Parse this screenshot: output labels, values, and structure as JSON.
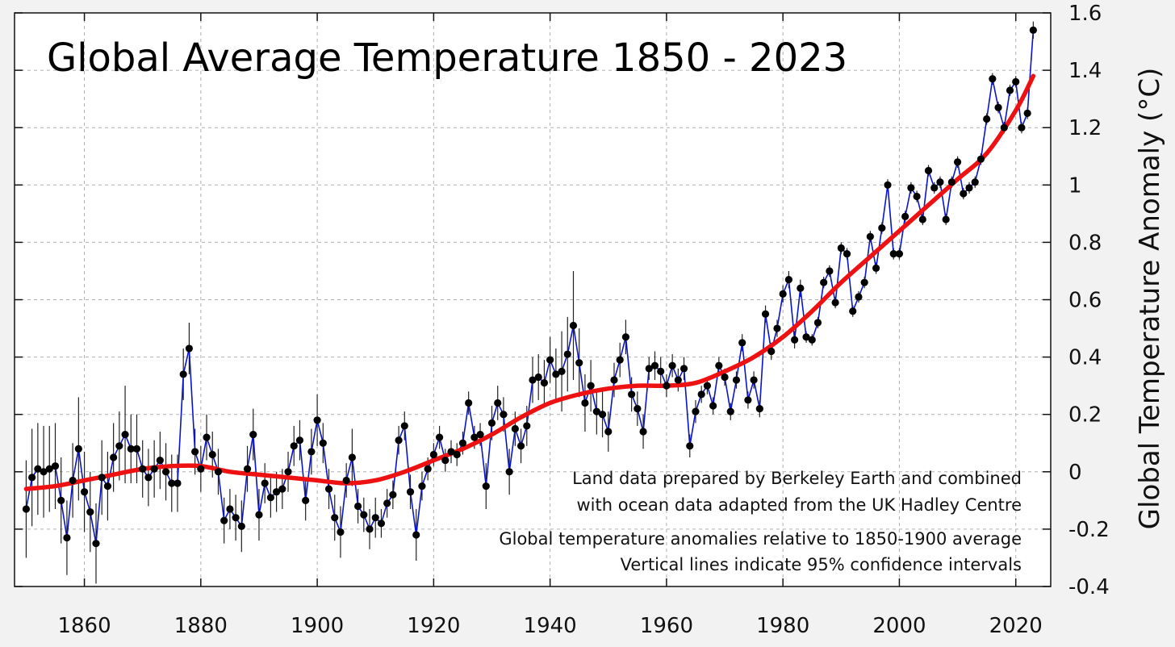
{
  "chart_data": {
    "type": "line",
    "title": "Global Average Temperature 1850 - 2023",
    "xlabel": "",
    "ylabel": "Global Temperature Anomaly (°C)",
    "xlim": [
      1848,
      2026
    ],
    "ylim": [
      -0.4,
      1.6
    ],
    "x_ticks": [
      1860,
      1880,
      1900,
      1920,
      1940,
      1960,
      1980,
      2000,
      2020
    ],
    "y_ticks": [
      -0.4,
      -0.2,
      0,
      0.2,
      0.4,
      0.6,
      0.8,
      1,
      1.2,
      1.4,
      1.6
    ],
    "y_tick_labels": [
      "-0.4",
      "-0.2",
      "0",
      "0.2",
      "0.4",
      "0.6",
      "0.8",
      "1",
      "1.2",
      "1.4",
      "1.6"
    ],
    "grid": true,
    "y_axis_side": "right",
    "annotations": [
      "Land data prepared by Berkeley Earth and combined",
      "with ocean data adapted from the UK Hadley Centre",
      "Global temperature anomalies relative to 1850-1900 average",
      "Vertical lines indicate 95% confidence intervals"
    ],
    "colors": {
      "annual_line": "#0a14c8",
      "points": "#000000",
      "smooth_trend": "#ee1111",
      "error_bars": "#222222",
      "grid": "#b0b0b0"
    },
    "series": [
      {
        "style": "line-markers-errorbars",
        "x_start": 1850,
        "y": [
          -0.13,
          -0.02,
          0.01,
          0.0,
          0.01,
          0.02,
          -0.1,
          -0.23,
          -0.03,
          0.08,
          -0.07,
          -0.14,
          -0.25,
          -0.02,
          -0.05,
          0.05,
          0.09,
          0.13,
          0.08,
          0.08,
          0.01,
          -0.02,
          0.01,
          0.04,
          0.0,
          -0.04,
          -0.04,
          0.34,
          0.43,
          0.07,
          0.01,
          0.12,
          0.06,
          0.0,
          -0.17,
          -0.13,
          -0.16,
          -0.19,
          0.01,
          0.13,
          -0.15,
          -0.04,
          -0.09,
          -0.07,
          -0.06,
          0.0,
          0.09,
          0.11,
          -0.1,
          0.07,
          0.18,
          0.1,
          -0.06,
          -0.16,
          -0.21,
          -0.03,
          0.05,
          -0.12,
          -0.15,
          -0.2,
          -0.16,
          -0.18,
          -0.11,
          -0.08,
          0.11,
          0.16,
          -0.07,
          -0.22,
          -0.05,
          0.01,
          0.06,
          0.12,
          0.04,
          0.07,
          0.06,
          0.1,
          0.24,
          0.12,
          0.13,
          -0.05,
          0.17,
          0.24,
          0.2,
          0.0,
          0.15,
          0.09,
          0.16,
          0.32,
          0.33,
          0.31,
          0.39,
          0.34,
          0.35,
          0.41,
          0.51,
          0.38,
          0.24,
          0.3,
          0.21,
          0.2,
          0.14,
          0.32,
          0.39,
          0.47,
          0.27,
          0.22,
          0.14,
          0.36,
          0.37,
          0.35,
          0.3,
          0.37,
          0.32,
          0.36,
          0.09,
          0.21,
          0.27,
          0.3,
          0.23,
          0.37,
          0.33,
          0.21,
          0.32,
          0.45,
          0.25,
          0.32,
          0.22,
          0.55,
          0.42,
          0.5,
          0.62,
          0.67,
          0.46,
          0.64,
          0.47,
          0.46,
          0.52,
          0.66,
          0.7,
          0.59,
          0.78,
          0.76,
          0.56,
          0.61,
          0.66,
          0.82,
          0.71,
          0.85,
          1.0,
          0.76,
          0.76,
          0.89,
          0.99,
          0.96,
          0.88,
          1.05,
          0.99,
          1.01,
          0.88,
          1.01,
          1.08,
          0.97,
          0.99,
          1.01,
          1.09,
          1.23,
          1.37,
          1.27,
          1.2,
          1.33,
          1.36,
          1.2,
          1.25,
          1.54
        ],
        "ci95_halfwidth": [
          0.17,
          0.17,
          0.16,
          0.16,
          0.15,
          0.15,
          0.15,
          0.13,
          0.13,
          0.18,
          0.14,
          0.14,
          0.14,
          0.13,
          0.12,
          0.12,
          0.12,
          0.17,
          0.12,
          0.12,
          0.1,
          0.1,
          0.1,
          0.1,
          0.1,
          0.1,
          0.1,
          0.09,
          0.09,
          0.08,
          0.08,
          0.08,
          0.08,
          0.08,
          0.08,
          0.07,
          0.08,
          0.09,
          0.08,
          0.09,
          0.09,
          0.07,
          0.07,
          0.07,
          0.07,
          0.07,
          0.07,
          0.07,
          0.07,
          0.08,
          0.09,
          0.07,
          0.07,
          0.08,
          0.09,
          0.06,
          0.1,
          0.06,
          0.06,
          0.07,
          0.07,
          0.05,
          0.05,
          0.05,
          0.05,
          0.05,
          0.06,
          0.09,
          0.05,
          0.04,
          0.04,
          0.04,
          0.04,
          0.04,
          0.04,
          0.04,
          0.04,
          0.04,
          0.04,
          0.08,
          0.06,
          0.06,
          0.06,
          0.08,
          0.06,
          0.06,
          0.07,
          0.08,
          0.08,
          0.08,
          0.08,
          0.09,
          0.14,
          0.13,
          0.19,
          0.12,
          0.1,
          0.09,
          0.08,
          0.08,
          0.07,
          0.06,
          0.06,
          0.06,
          0.06,
          0.06,
          0.06,
          0.04,
          0.05,
          0.05,
          0.04,
          0.04,
          0.04,
          0.04,
          0.04,
          0.04,
          0.03,
          0.03,
          0.03,
          0.03,
          0.03,
          0.03,
          0.03,
          0.03,
          0.03,
          0.03,
          0.03,
          0.03,
          0.03,
          0.03,
          0.03,
          0.03,
          0.03,
          0.03,
          0.02,
          0.02,
          0.02,
          0.02,
          0.02,
          0.02,
          0.02,
          0.02,
          0.02,
          0.02,
          0.02,
          0.02,
          0.02,
          0.02,
          0.02,
          0.02,
          0.02,
          0.02,
          0.02,
          0.02,
          0.02,
          0.02,
          0.02,
          0.02,
          0.02,
          0.02,
          0.02,
          0.02,
          0.02,
          0.02,
          0.02,
          0.02,
          0.02,
          0.02,
          0.02,
          0.02,
          0.02,
          0.02,
          0.02,
          0.03
        ]
      },
      {
        "style": "smooth-trend",
        "x": [
          1850,
          1855,
          1860,
          1865,
          1870,
          1875,
          1880,
          1885,
          1890,
          1895,
          1900,
          1905,
          1910,
          1915,
          1920,
          1925,
          1930,
          1935,
          1940,
          1945,
          1950,
          1955,
          1960,
          1965,
          1970,
          1975,
          1980,
          1985,
          1990,
          1995,
          2000,
          2005,
          2010,
          2015,
          2020,
          2023
        ],
        "y": [
          -0.06,
          -0.05,
          -0.03,
          -0.01,
          0.01,
          0.02,
          0.02,
          0.0,
          -0.01,
          -0.02,
          -0.03,
          -0.04,
          -0.03,
          0.0,
          0.04,
          0.08,
          0.13,
          0.19,
          0.24,
          0.27,
          0.29,
          0.3,
          0.3,
          0.31,
          0.35,
          0.4,
          0.47,
          0.56,
          0.66,
          0.75,
          0.84,
          0.93,
          1.02,
          1.11,
          1.26,
          1.38
        ]
      }
    ]
  }
}
